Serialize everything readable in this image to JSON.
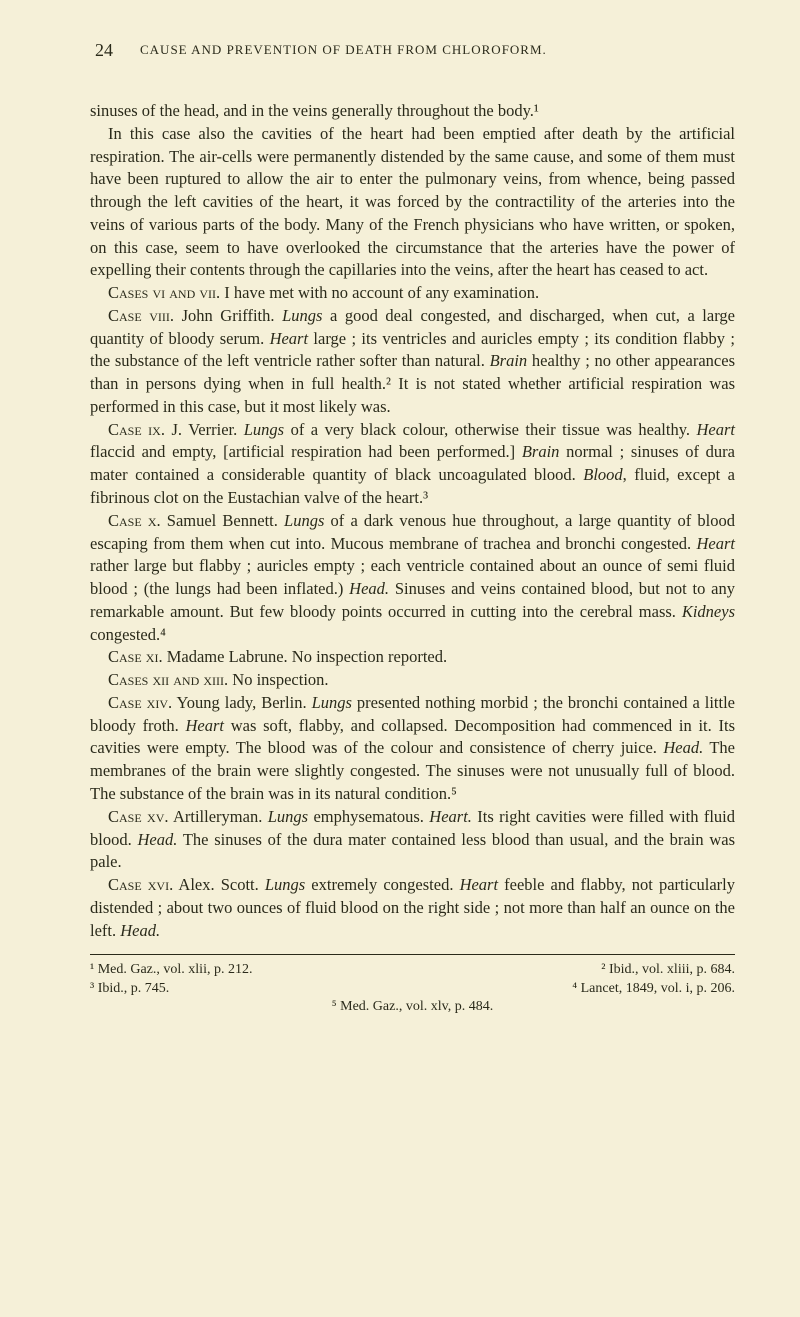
{
  "page_number": "24",
  "running_header": "CAUSE AND PREVENTION OF DEATH FROM CHLOROFORM.",
  "para1": "sinuses of the head, and in the veins generally throughout the body.¹",
  "para2": "In this case also the cavities of the heart had been emptied after death by the artificial respiration. The air-cells were permanently distended by the same cause, and some of them must have been ruptured to allow the air to enter the pulmonary veins, from whence, being passed through the left cavities of the heart, it was forced by the contractility of the arteries into the veins of various parts of the body. Many of the French physicians who have written, or spoken, on this case, seem to have overlooked the circumstance that the arteries have the power of expelling their contents through the capillaries into the veins, after the heart has ceased to act.",
  "cases_vi_vii_label": "Cases vi and vii.",
  "cases_vi_vii_text": " I have met with no account of any examination.",
  "case_viii_label": "Case viii.",
  "case_viii_text_a": " John Griffith. ",
  "case_viii_lungs": "Lungs",
  "case_viii_text_b": " a good deal congested, and discharged, when cut, a large quantity of bloody serum. ",
  "case_viii_heart": "Heart",
  "case_viii_text_c": " large ; its ventricles and auricles empty ; its condition flabby ; the substance of the left ventricle rather softer than natural. ",
  "case_viii_brain": "Brain",
  "case_viii_text_d": " healthy ; no other appearances than in persons dying when in full health.² It is not stated whether artificial respiration was performed in this case, but it most likely was.",
  "case_ix_label": "Case ix.",
  "case_ix_text_a": " J. Verrier. ",
  "case_ix_lungs": "Lungs",
  "case_ix_text_b": " of a very black colour, otherwise their tissue was healthy. ",
  "case_ix_heart": "Heart",
  "case_ix_text_c": " flaccid and empty, [artificial respiration had been performed.] ",
  "case_ix_brain": "Brain",
  "case_ix_text_d": " normal ; sinuses of dura mater contained a considerable quantity of black uncoagulated blood. ",
  "case_ix_blood": "Blood",
  "case_ix_text_e": ", fluid, except a fibrinous clot on the Eustachian valve of the heart.³",
  "case_x_label": "Case x.",
  "case_x_text_a": " Samuel Bennett. ",
  "case_x_lungs": "Lungs",
  "case_x_text_b": " of a dark venous hue throughout, a large quantity of blood escaping from them when cut into. Mucous membrane of trachea and bronchi congested. ",
  "case_x_heart": "Heart",
  "case_x_text_c": " rather large but flabby ; auricles empty ; each ventricle contained about an ounce of semi fluid blood ; (the lungs had been inflated.) ",
  "case_x_head": "Head.",
  "case_x_text_d": " Sinuses and veins contained blood, but not to any remarkable amount. But few bloody points occurred in cutting into the cerebral mass. ",
  "case_x_kidneys": "Kidneys",
  "case_x_text_e": " congested.⁴",
  "case_xi_label": "Case xi.",
  "case_xi_text": " Madame Labrune. No inspection reported.",
  "cases_xii_xiii_label": "Cases xii and xiii.",
  "cases_xii_xiii_text": " No inspection.",
  "case_xiv_label": "Case xiv.",
  "case_xiv_text_a": " Young lady, Berlin. ",
  "case_xiv_lungs": "Lungs",
  "case_xiv_text_b": " presented nothing morbid ; the bronchi contained a little bloody froth. ",
  "case_xiv_heart": "Heart",
  "case_xiv_text_c": " was soft, flabby, and collapsed. Decomposition had commenced in it. Its cavities were empty. The blood was of the colour and consistence of cherry juice. ",
  "case_xiv_head": "Head.",
  "case_xiv_text_d": " The membranes of the brain were slightly congested. The sinuses were not unusually full of blood. The substance of the brain was in its natural condition.⁵",
  "case_xv_label": "Case xv.",
  "case_xv_text_a": " Artilleryman. ",
  "case_xv_lungs": "Lungs",
  "case_xv_text_b": " emphysematous. ",
  "case_xv_heart": "Heart.",
  "case_xv_text_c": " Its right cavities were filled with fluid blood. ",
  "case_xv_head": "Head.",
  "case_xv_text_d": " The sinuses of the dura mater contained less blood than usual, and the brain was pale.",
  "case_xvi_label": "Case xvi.",
  "case_xvi_text_a": " Alex. Scott. ",
  "case_xvi_lungs": "Lungs",
  "case_xvi_text_b": " extremely congested. ",
  "case_xvi_heart": "Heart",
  "case_xvi_text_c": " feeble and flabby, not particularly distended ; about two ounces of fluid blood on the right side ; not more than half an ounce on the left. ",
  "case_xvi_head": "Head.",
  "footnotes": {
    "fn1": "¹ Med. Gaz., vol. xlii, p. 212.",
    "fn2": "² Ibid., vol. xliii, p. 684.",
    "fn3": "³ Ibid., p. 745.",
    "fn4": "⁴ Lancet, 1849, vol. i, p. 206.",
    "fn5": "⁵ Med. Gaz., vol. xlv, p. 484."
  },
  "colors": {
    "background": "#f5f0d8",
    "text": "#2a2a1a"
  },
  "typography": {
    "body_font_size": 16.5,
    "line_height": 1.38,
    "footnote_font_size": 14,
    "page_number_font_size": 18,
    "header_font_size": 13
  }
}
